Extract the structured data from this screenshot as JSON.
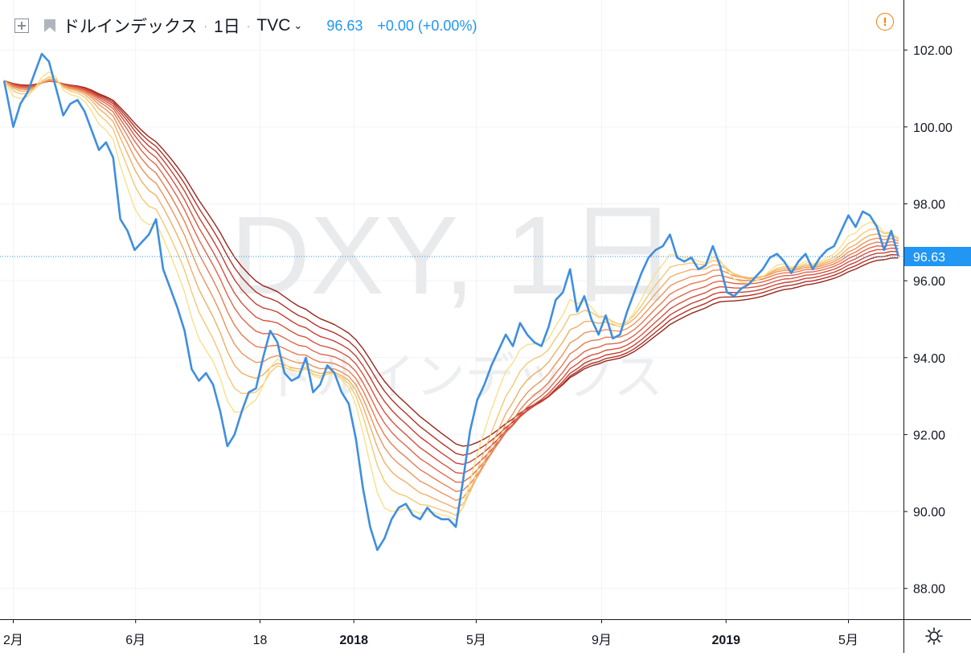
{
  "header": {
    "symbol_name": "ドルインデックス",
    "interval": "1日",
    "exchange": "TVC",
    "last_value": "96.63",
    "change": "+0.00 (+0.00%)"
  },
  "watermark": {
    "main": "DXY, 1日",
    "sub": "ドルインデックス"
  },
  "icons": {
    "add_symbol": "plus-box-icon",
    "flag": "flag-icon",
    "dropdown": "chevron-down-icon",
    "alert": "alert-circle-icon",
    "settings": "gear-icon"
  },
  "colors": {
    "price_line": "#3f8ee0",
    "price_label_bg": "#2196f3",
    "alert": "#f57c00",
    "ribbon": [
      "#f9e08a",
      "#f6c774",
      "#f2ae64",
      "#ee945a",
      "#e97b52",
      "#e2654a",
      "#d6523f",
      "#c64133",
      "#b23327",
      "#98261c"
    ]
  },
  "chart_data": {
    "type": "line",
    "title": "ドルインデックス",
    "xlabel": "",
    "ylabel": "",
    "ylim": [
      87.2,
      103.3
    ],
    "y_ticks": [
      "88.00",
      "90.00",
      "92.00",
      "94.00",
      "96.00",
      "98.00",
      "100.00",
      "102.00"
    ],
    "x_ticks": [
      "2月",
      "6月",
      "18",
      "2018",
      "5月",
      "9月",
      "2019",
      "5月"
    ],
    "x_tick_dates": [
      "2017-02-01",
      "2017-06-01",
      "2017-10-01",
      "2018-01-01",
      "2018-05-01",
      "2018-09-01",
      "2019-01-01",
      "2019-05-01"
    ],
    "grid": true,
    "last_price": 96.63,
    "series": [
      {
        "name": "DXY",
        "dates": [
          "2017-01-23",
          "2017-02-01",
          "2017-02-08",
          "2017-02-15",
          "2017-02-22",
          "2017-03-01",
          "2017-03-08",
          "2017-03-15",
          "2017-03-22",
          "2017-03-29",
          "2017-04-05",
          "2017-04-12",
          "2017-04-19",
          "2017-04-26",
          "2017-05-03",
          "2017-05-10",
          "2017-05-17",
          "2017-05-24",
          "2017-05-31",
          "2017-06-07",
          "2017-06-14",
          "2017-06-21",
          "2017-06-28",
          "2017-07-05",
          "2017-07-12",
          "2017-07-19",
          "2017-07-26",
          "2017-08-02",
          "2017-08-09",
          "2017-08-16",
          "2017-08-23",
          "2017-08-30",
          "2017-09-06",
          "2017-09-13",
          "2017-09-20",
          "2017-09-27",
          "2017-10-04",
          "2017-10-11",
          "2017-10-18",
          "2017-10-25",
          "2017-11-01",
          "2017-11-08",
          "2017-11-15",
          "2017-11-22",
          "2017-11-29",
          "2017-12-06",
          "2017-12-13",
          "2017-12-20",
          "2017-12-27",
          "2018-01-03",
          "2018-01-10",
          "2018-01-17",
          "2018-01-24",
          "2018-01-31",
          "2018-02-07",
          "2018-02-14",
          "2018-02-21",
          "2018-02-28",
          "2018-03-07",
          "2018-03-14",
          "2018-03-21",
          "2018-03-28",
          "2018-04-04",
          "2018-04-11",
          "2018-04-18",
          "2018-04-25",
          "2018-05-02",
          "2018-05-09",
          "2018-05-16",
          "2018-05-23",
          "2018-05-30",
          "2018-06-06",
          "2018-06-13",
          "2018-06-20",
          "2018-06-27",
          "2018-07-04",
          "2018-07-11",
          "2018-07-18",
          "2018-07-25",
          "2018-08-01",
          "2018-08-08",
          "2018-08-15",
          "2018-08-22",
          "2018-08-29",
          "2018-09-05",
          "2018-09-12",
          "2018-09-19",
          "2018-09-26",
          "2018-10-03",
          "2018-10-10",
          "2018-10-17",
          "2018-10-24",
          "2018-10-31",
          "2018-11-07",
          "2018-11-14",
          "2018-11-21",
          "2018-11-28",
          "2018-12-05",
          "2018-12-12",
          "2018-12-19",
          "2018-12-26",
          "2019-01-02",
          "2019-01-09",
          "2019-01-16",
          "2019-01-23",
          "2019-01-30",
          "2019-02-06",
          "2019-02-13",
          "2019-02-20",
          "2019-02-27",
          "2019-03-06",
          "2019-03-13",
          "2019-03-20",
          "2019-03-27",
          "2019-04-03",
          "2019-04-10",
          "2019-04-17",
          "2019-04-24",
          "2019-05-01",
          "2019-05-08",
          "2019-05-15",
          "2019-05-22",
          "2019-05-29",
          "2019-06-05",
          "2019-06-12",
          "2019-06-19"
        ],
        "values": [
          101.2,
          100.0,
          100.6,
          100.9,
          101.4,
          101.9,
          101.7,
          101.0,
          100.3,
          100.6,
          100.7,
          100.4,
          99.9,
          99.4,
          99.6,
          99.2,
          97.6,
          97.3,
          96.8,
          97.0,
          97.2,
          97.6,
          96.3,
          95.8,
          95.3,
          94.7,
          93.7,
          93.4,
          93.6,
          93.3,
          92.6,
          91.7,
          92.0,
          92.6,
          93.1,
          93.2,
          94.0,
          94.7,
          94.4,
          93.6,
          93.4,
          93.5,
          94.0,
          93.1,
          93.3,
          93.8,
          93.6,
          93.1,
          92.8,
          91.9,
          90.6,
          89.6,
          89.0,
          89.3,
          89.8,
          90.1,
          90.2,
          89.9,
          89.8,
          90.1,
          89.9,
          89.8,
          89.8,
          89.6,
          90.8,
          92.1,
          92.9,
          93.3,
          93.8,
          94.2,
          94.6,
          94.3,
          94.9,
          94.6,
          94.4,
          94.3,
          94.8,
          95.5,
          95.7,
          96.3,
          95.2,
          95.6,
          95.0,
          94.6,
          95.1,
          94.5,
          94.6,
          95.2,
          95.7,
          96.2,
          96.6,
          96.8,
          96.9,
          97.2,
          96.6,
          96.5,
          96.6,
          96.3,
          96.4,
          96.9,
          96.4,
          95.7,
          95.6,
          95.8,
          95.9,
          96.1,
          96.3,
          96.6,
          96.7,
          96.5,
          96.2,
          96.5,
          96.7,
          96.3,
          96.6,
          96.8,
          96.9,
          97.3,
          97.7,
          97.4,
          97.8,
          97.7,
          97.4,
          96.8,
          97.3,
          96.63
        ]
      }
    ],
    "ribbon_periods": [
      5,
      8,
      11,
      14,
      17,
      20,
      23,
      26,
      29,
      32
    ]
  }
}
